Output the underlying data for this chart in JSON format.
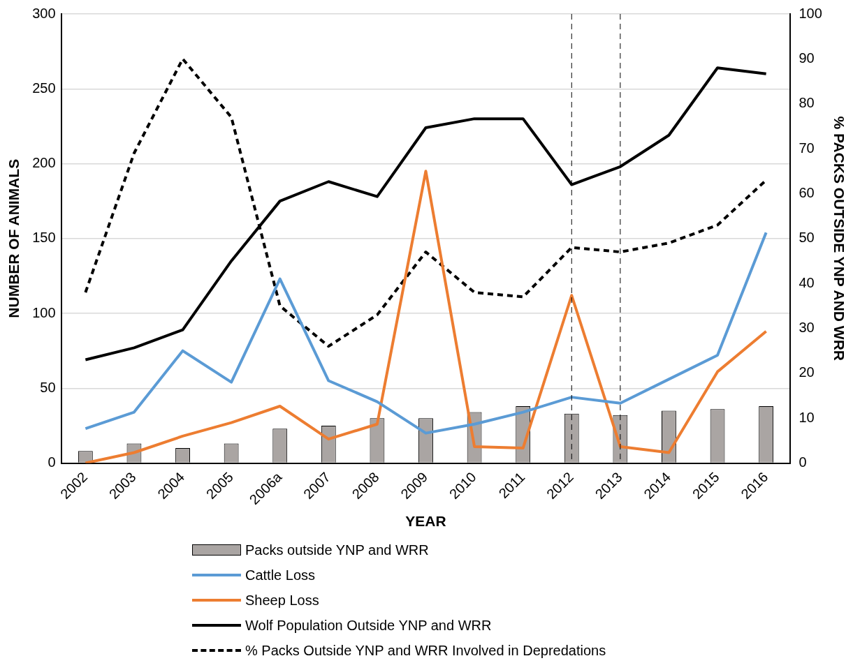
{
  "chart_data": {
    "type": "bar",
    "xlabel": "YEAR",
    "ylabel": "NUMBER OF ANIMALS",
    "y2label": "% PACKS OUTSIDE YNP AND WRR",
    "categories": [
      "2002",
      "2003",
      "2004",
      "2005",
      "2006a",
      "2007",
      "2008",
      "2009",
      "2010",
      "2011",
      "2012",
      "2013",
      "2014",
      "2015",
      "2016"
    ],
    "series": [
      {
        "name": "Packs outside YNP and WRR",
        "color": "#aaa5a3",
        "values": [
          8,
          13,
          10,
          13,
          23,
          25,
          30,
          30,
          34,
          38,
          33,
          32,
          35,
          36,
          38
        ]
      },
      {
        "name": "Cattle Loss",
        "type": "line",
        "color": "#5b9bd5",
        "values": [
          23,
          34,
          75,
          54,
          123,
          55,
          41,
          20,
          26,
          34,
          44,
          40,
          56,
          72,
          154
        ]
      },
      {
        "name": "Sheep Loss",
        "type": "line",
        "color": "#ed7d31",
        "values": [
          0,
          7,
          18,
          27,
          38,
          16,
          26,
          195,
          11,
          10,
          112,
          11,
          7,
          61,
          88
        ]
      },
      {
        "name": "Wolf Population Outside YNP and WRR",
        "type": "line",
        "color": "#000000",
        "values": [
          69,
          77,
          89,
          135,
          175,
          188,
          178,
          224,
          230,
          230,
          186,
          198,
          219,
          264,
          260
        ]
      },
      {
        "name": "% Packs Outside YNP and WRR Involved in Depredations",
        "type": "line",
        "color": "#000000",
        "line_style": "dashed",
        "axis": "y2",
        "values": [
          38,
          69,
          90,
          77,
          35,
          26,
          33,
          47,
          38,
          37,
          48,
          47,
          49,
          53,
          63
        ]
      }
    ],
    "ylim": [
      0,
      300
    ],
    "yticks": [
      0,
      50,
      100,
      150,
      200,
      250,
      300
    ],
    "y2lim": [
      0,
      100
    ],
    "y2ticks": [
      0,
      10,
      20,
      30,
      40,
      50,
      60,
      70,
      80,
      90,
      100
    ],
    "ref_lines": [
      {
        "axis": "x",
        "value": "2012",
        "color": "#000000",
        "line_style": "dashed"
      },
      {
        "axis": "x",
        "value": "2013",
        "color": "#000000",
        "line_style": "dashed"
      }
    ],
    "grid": "y",
    "legend": "bottom",
    "marker": "none"
  }
}
